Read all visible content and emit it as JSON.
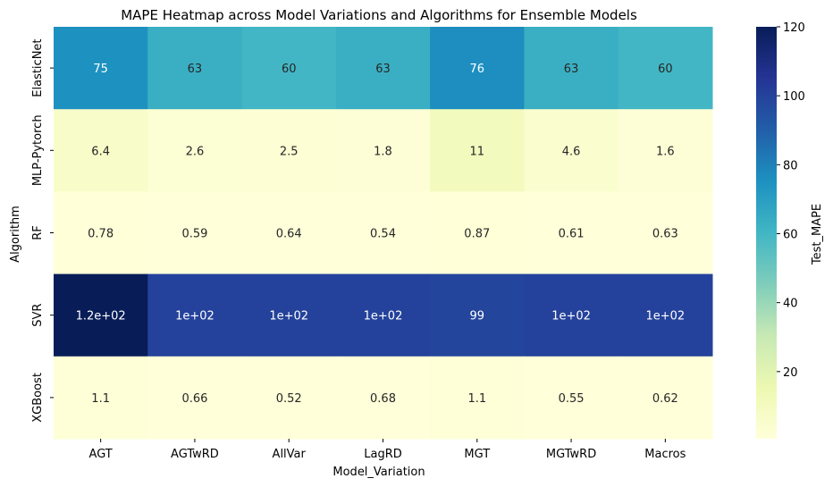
{
  "chart_data": {
    "type": "heatmap",
    "title": "MAPE Heatmap across Model Variations and Algorithms for Ensemble Models",
    "xlabel": "Model_Variation",
    "ylabel": "Algorithm",
    "x_categories": [
      "AGT",
      "AGTwRD",
      "AllVar",
      "LagRD",
      "MGT",
      "MGTwRD",
      "Macros"
    ],
    "y_categories": [
      "ElasticNet",
      "MLP-Pytorch",
      "RF",
      "SVR",
      "XGBoost"
    ],
    "values": [
      [
        75,
        63,
        60,
        63,
        76,
        63,
        60
      ],
      [
        6.4,
        2.6,
        2.5,
        1.8,
        11,
        4.6,
        1.6
      ],
      [
        0.78,
        0.59,
        0.64,
        0.54,
        0.87,
        0.61,
        0.63
      ],
      [
        120,
        100,
        100,
        100,
        99,
        100,
        100
      ],
      [
        1.1,
        0.66,
        0.52,
        0.68,
        1.1,
        0.55,
        0.62
      ]
    ],
    "annotations": [
      [
        "75",
        "63",
        "60",
        "63",
        "76",
        "63",
        "60"
      ],
      [
        "6.4",
        "2.6",
        "2.5",
        "1.8",
        "11",
        "4.6",
        "1.6"
      ],
      [
        "0.78",
        "0.59",
        "0.64",
        "0.54",
        "0.87",
        "0.61",
        "0.63"
      ],
      [
        "1.2e+02",
        "1e+02",
        "1e+02",
        "1e+02",
        "99",
        "1e+02",
        "1e+02"
      ],
      [
        "1.1",
        "0.66",
        "0.52",
        "0.68",
        "1.1",
        "0.55",
        "0.62"
      ]
    ],
    "colorbar": {
      "label": "Test_MAPE",
      "range": [
        0.52,
        120
      ],
      "ticks": [
        20,
        40,
        60,
        80,
        100,
        120
      ],
      "colormap": "YlGnBu",
      "colormap_stops": [
        "#ffffd9",
        "#edf8b1",
        "#c7e9b4",
        "#7fcdbb",
        "#41b6c4",
        "#1d91c0",
        "#225ea8",
        "#253494",
        "#081d58"
      ]
    }
  }
}
